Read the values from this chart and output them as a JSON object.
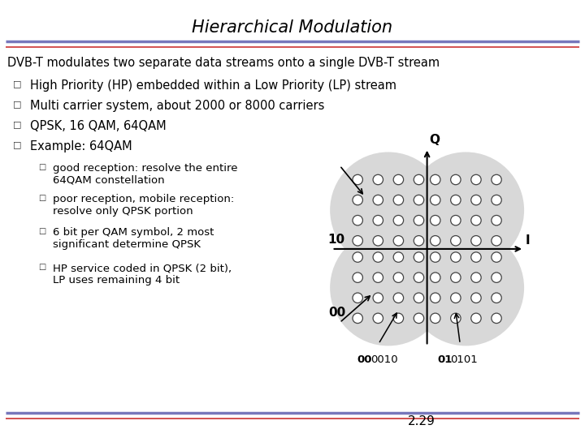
{
  "title": "Hierarchical Modulation",
  "slide_text": [
    "DVB-T modulates two separate data streams onto a single DVB-T stream",
    "High Priority (HP) embedded within a Low Priority (LP) stream",
    "Multi carrier system, about 2000 or 8000 carriers",
    "QPSK, 16 QAM, 64QAM",
    "Example: 64QAM"
  ],
  "sub_bullets": [
    "good reception: resolve the entire\n64QAM constellation",
    "poor reception, mobile reception:\nresolve only QPSK portion",
    "6 bit per QAM symbol, 2 most\nsignificant determine QPSK",
    "HP service coded in QPSK (2 bit),\nLP uses remaining 4 bit"
  ],
  "page_number": "2.29",
  "background_color": "#ffffff",
  "title_color": "#000000",
  "header_line_color1": "#7777bb",
  "header_line_color2": "#cc3333",
  "circle_fill_color": "#d8d8d8",
  "dot_color": "#ffffff",
  "dot_edge_color": "#444444",
  "axis_label_Q": "Q",
  "axis_label_I": "I",
  "label_10": "10",
  "label_00": "00"
}
